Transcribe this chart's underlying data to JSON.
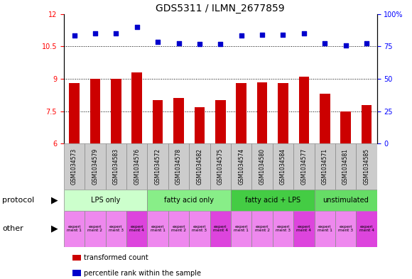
{
  "title": "GDS5311 / ILMN_2677859",
  "samples": [
    "GSM1034573",
    "GSM1034579",
    "GSM1034583",
    "GSM1034576",
    "GSM1034572",
    "GSM1034578",
    "GSM1034582",
    "GSM1034575",
    "GSM1034574",
    "GSM1034580",
    "GSM1034584",
    "GSM1034577",
    "GSM1034571",
    "GSM1034581",
    "GSM1034585"
  ],
  "bar_values": [
    8.8,
    9.0,
    9.0,
    9.3,
    8.0,
    8.1,
    7.7,
    8.0,
    8.8,
    8.85,
    8.8,
    9.1,
    8.3,
    7.5,
    7.8
  ],
  "dot_values": [
    11.0,
    11.1,
    11.1,
    11.4,
    10.7,
    10.65,
    10.6,
    10.6,
    11.0,
    11.05,
    11.05,
    11.1,
    10.65,
    10.55,
    10.65
  ],
  "ylim_left": [
    6,
    12
  ],
  "ylim_right": [
    0,
    100
  ],
  "yticks_left": [
    6,
    7.5,
    9,
    10.5,
    12
  ],
  "yticks_right": [
    0,
    25,
    50,
    75,
    100
  ],
  "bar_color": "#cc0000",
  "dot_color": "#0000cc",
  "bar_width": 0.5,
  "protocols": [
    {
      "label": "LPS only",
      "start": 0,
      "end": 4,
      "color": "#ccffcc"
    },
    {
      "label": "fatty acid only",
      "start": 4,
      "end": 8,
      "color": "#88ee88"
    },
    {
      "label": "fatty acid + LPS",
      "start": 8,
      "end": 12,
      "color": "#44cc44"
    },
    {
      "label": "unstimulated",
      "start": 12,
      "end": 15,
      "color": "#66dd66"
    }
  ],
  "other_labels": [
    "experi\nment 1",
    "experi\nment 2",
    "experi\nment 3",
    "experi\nment 4",
    "experi\nment 1",
    "experi\nment 2",
    "experi\nment 3",
    "experi\nment 4",
    "experi\nment 1",
    "experi\nment 2",
    "experi\nment 3",
    "experi\nment 4",
    "experi\nment 1",
    "experi\nment 3",
    "experi\nment 4"
  ],
  "other_colors": [
    "#ee88ee",
    "#ee88ee",
    "#ee88ee",
    "#dd44dd",
    "#ee88ee",
    "#ee88ee",
    "#ee88ee",
    "#dd44dd",
    "#ee88ee",
    "#ee88ee",
    "#ee88ee",
    "#dd44dd",
    "#ee88ee",
    "#ee88ee",
    "#dd44dd"
  ],
  "protocol_label": "protocol",
  "other_label": "other",
  "legend_items": [
    {
      "color": "#cc0000",
      "label": "transformed count"
    },
    {
      "color": "#0000cc",
      "label": "percentile rank within the sample"
    }
  ],
  "sample_bg": "#cccccc",
  "title_fontsize": 10,
  "tick_fontsize": 7,
  "annotation_fontsize": 8
}
